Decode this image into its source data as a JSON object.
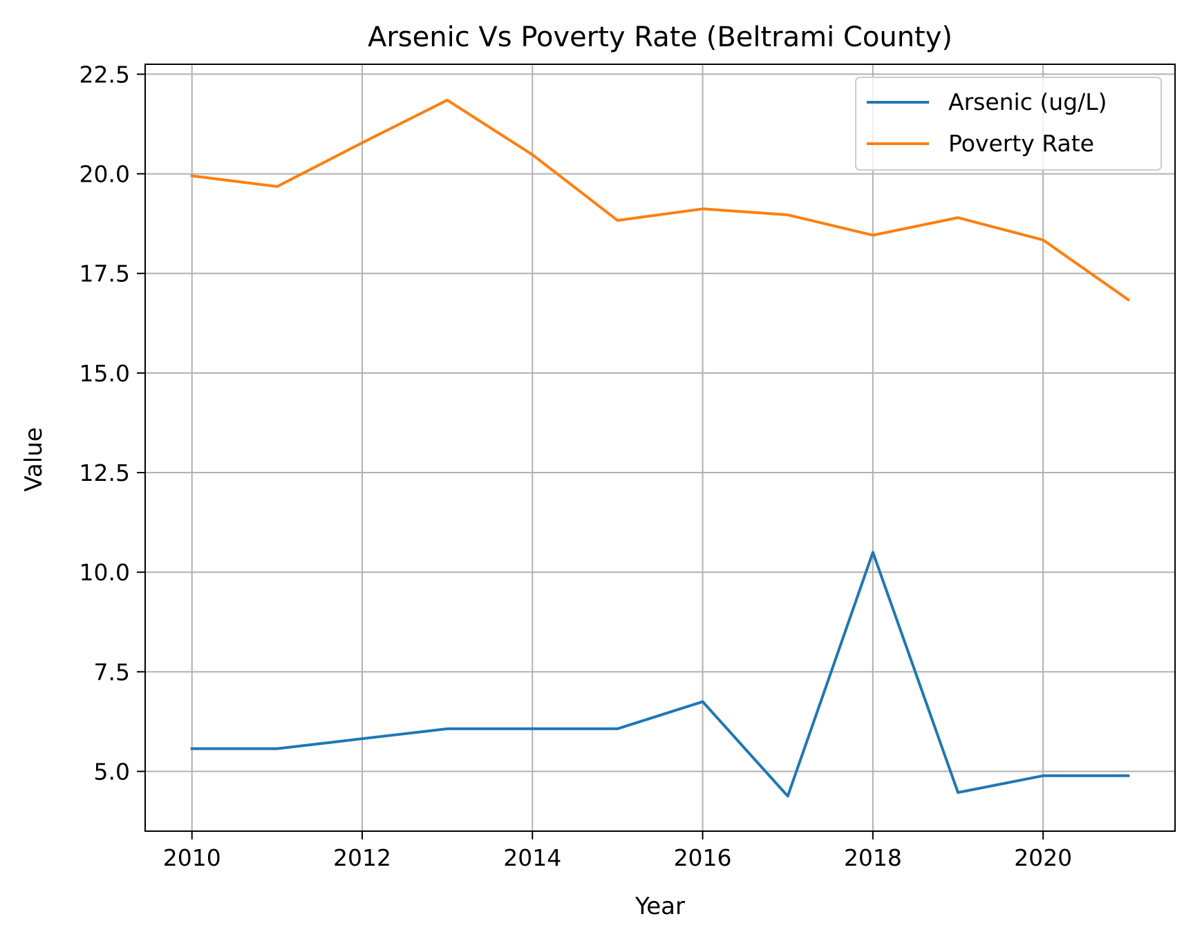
{
  "chart_data": {
    "type": "line",
    "title": "Arsenic Vs Poverty Rate (Beltrami County)",
    "xlabel": "Year",
    "ylabel": "Value",
    "x": [
      2010,
      2011,
      2012,
      2013,
      2014,
      2015,
      2016,
      2017,
      2018,
      2019,
      2020,
      2021
    ],
    "xlim": [
      2009.45,
      2021.55
    ],
    "ylim": [
      3.5,
      22.75
    ],
    "xticks": [
      2010,
      2012,
      2014,
      2016,
      2018,
      2020
    ],
    "xtick_labels": [
      "2010",
      "2012",
      "2014",
      "2016",
      "2018",
      "2020"
    ],
    "yticks": [
      5.0,
      7.5,
      10.0,
      12.5,
      15.0,
      17.5,
      20.0,
      22.5
    ],
    "ytick_labels": [
      "5.0",
      "7.5",
      "10.0",
      "12.5",
      "15.0",
      "17.5",
      "20.0",
      "22.5"
    ],
    "grid": true,
    "legend_position": "top-right",
    "series": [
      {
        "name": "Arsenic (ug/L)",
        "color": "#1f77b4",
        "values": [
          5.57,
          5.57,
          5.82,
          6.07,
          6.07,
          6.07,
          6.75,
          4.38,
          10.5,
          4.47,
          4.89,
          4.89
        ]
      },
      {
        "name": "Poverty Rate",
        "color": "#ff7f0e",
        "values": [
          19.95,
          19.68,
          20.78,
          21.85,
          20.48,
          18.83,
          19.12,
          18.97,
          18.46,
          18.9,
          18.34,
          16.84
        ]
      }
    ]
  }
}
